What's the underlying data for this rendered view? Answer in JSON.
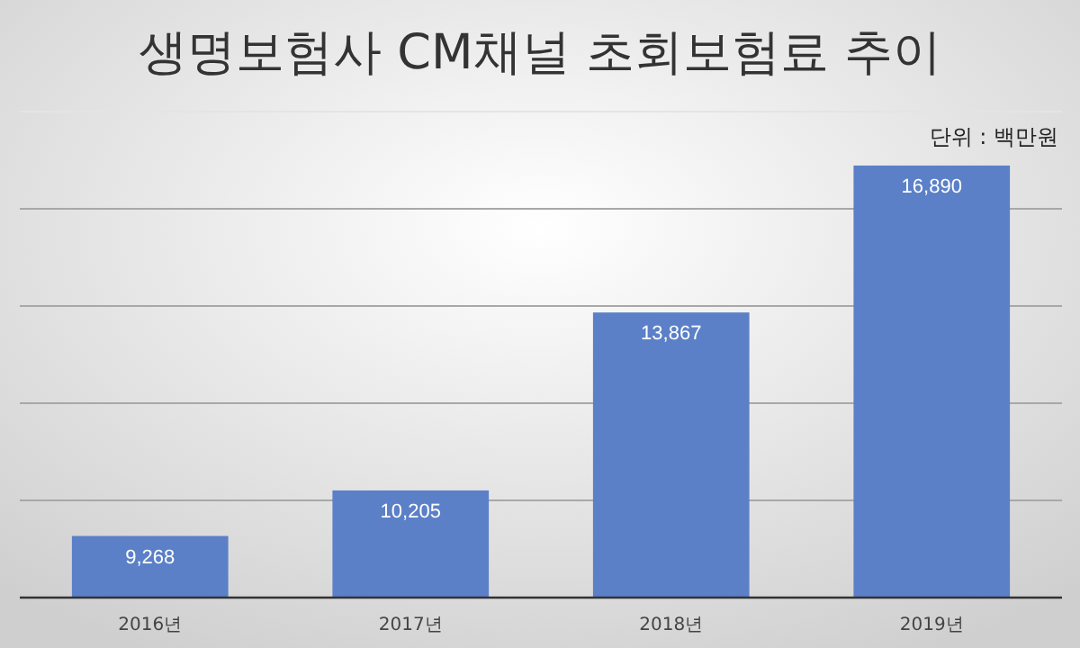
{
  "chart_data": {
    "type": "bar",
    "title": "생명보험사 CM채널 초회보험료 추이",
    "categories": [
      "2016년",
      "2017년",
      "2018년",
      "2019년"
    ],
    "values": [
      9268,
      10205,
      13867,
      16890
    ],
    "value_labels": [
      "9,268",
      "10,205",
      "13,867",
      "16,890"
    ],
    "color": "#5b80c8",
    "ylim": [
      8000,
      18000
    ],
    "yticks": [
      {
        "value": 8000,
        "label": null
      },
      {
        "value": 10000,
        "label": null
      },
      {
        "value": 12000,
        "label": null
      },
      {
        "value": 14000,
        "label": null
      },
      {
        "value": 16000,
        "label": null
      },
      {
        "value": 18000,
        "label": null
      }
    ],
    "tick_labels": "x",
    "grid": "y",
    "annotations": [
      "단위 : 백만원"
    ]
  }
}
